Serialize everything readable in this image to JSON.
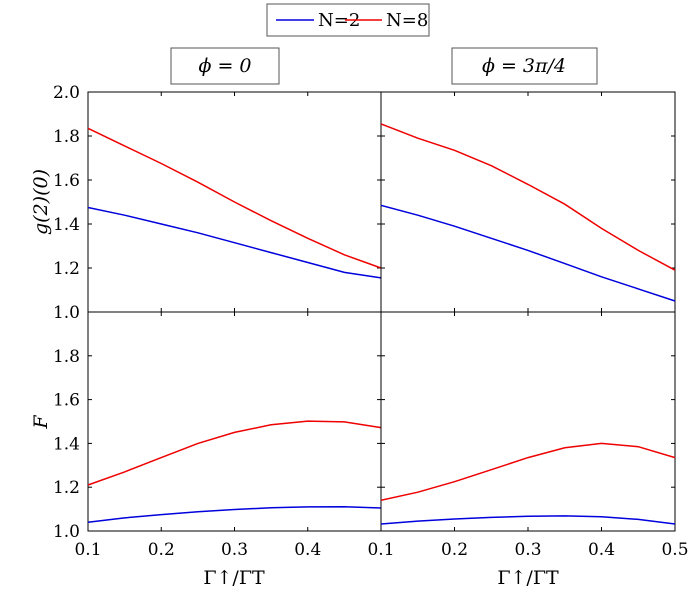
{
  "legend": {
    "entries": [
      {
        "label": "N=2",
        "color": "#0000dd"
      },
      {
        "label": "N=8",
        "color": "#ee0000"
      }
    ]
  },
  "panel_titles": [
    "ϕ = 0",
    "ϕ = 3π/4"
  ],
  "chart_data": [
    {
      "type": "line",
      "panel": "top-left",
      "xlim": [
        0.1,
        0.5
      ],
      "ylim": [
        1.0,
        2.0
      ],
      "yticks": [
        "1.0",
        "1.2",
        "1.4",
        "1.6",
        "1.8",
        "2.0"
      ],
      "ylabel": "g(2)(0)",
      "series": [
        {
          "name": "N=2",
          "x": [
            0.1,
            0.15,
            0.2,
            0.25,
            0.3,
            0.35,
            0.4,
            0.45,
            0.5
          ],
          "y": [
            1.475,
            1.44,
            1.4,
            1.36,
            1.315,
            1.27,
            1.225,
            1.18,
            1.155
          ]
        },
        {
          "name": "N=8",
          "x": [
            0.1,
            0.15,
            0.2,
            0.25,
            0.3,
            0.35,
            0.4,
            0.45,
            0.5
          ],
          "y": [
            1.835,
            1.755,
            1.675,
            1.59,
            1.5,
            1.415,
            1.335,
            1.26,
            1.2
          ]
        }
      ]
    },
    {
      "type": "line",
      "panel": "top-right",
      "xlim": [
        0.1,
        0.5
      ],
      "ylim": [
        1.0,
        2.0
      ],
      "series": [
        {
          "name": "N=2",
          "x": [
            0.1,
            0.15,
            0.2,
            0.25,
            0.3,
            0.35,
            0.4,
            0.45,
            0.5
          ],
          "y": [
            1.485,
            1.44,
            1.39,
            1.335,
            1.28,
            1.22,
            1.16,
            1.105,
            1.05
          ]
        },
        {
          "name": "N=8",
          "x": [
            0.1,
            0.15,
            0.2,
            0.25,
            0.3,
            0.35,
            0.4,
            0.45,
            0.5
          ],
          "y": [
            1.855,
            1.79,
            1.735,
            1.665,
            1.58,
            1.49,
            1.38,
            1.28,
            1.19
          ]
        }
      ]
    },
    {
      "type": "line",
      "panel": "bottom-left",
      "xlim": [
        0.1,
        0.5
      ],
      "ylim": [
        1.0,
        2.0
      ],
      "xticks": [
        "0.1",
        "0.2",
        "0.3",
        "0.4"
      ],
      "yticks": [
        "1.0",
        "1.2",
        "1.4",
        "1.6",
        "1.8"
      ],
      "xlabel": "Γ↑/ΓT",
      "ylabel": "F",
      "series": [
        {
          "name": "N=2",
          "x": [
            0.1,
            0.15,
            0.2,
            0.25,
            0.3,
            0.35,
            0.4,
            0.45,
            0.5
          ],
          "y": [
            1.04,
            1.06,
            1.075,
            1.088,
            1.098,
            1.106,
            1.11,
            1.111,
            1.105
          ]
        },
        {
          "name": "N=8",
          "x": [
            0.1,
            0.15,
            0.2,
            0.25,
            0.3,
            0.35,
            0.4,
            0.45,
            0.5
          ],
          "y": [
            1.21,
            1.27,
            1.335,
            1.4,
            1.45,
            1.485,
            1.502,
            1.498,
            1.472
          ]
        }
      ]
    },
    {
      "type": "line",
      "panel": "bottom-right",
      "xlim": [
        0.1,
        0.5
      ],
      "ylim": [
        1.0,
        2.0
      ],
      "xticks": [
        "0.1",
        "0.2",
        "0.3",
        "0.4",
        "0.5"
      ],
      "xlabel": "Γ↑/ΓT",
      "series": [
        {
          "name": "N=2",
          "x": [
            0.1,
            0.15,
            0.2,
            0.25,
            0.3,
            0.35,
            0.4,
            0.45,
            0.5
          ],
          "y": [
            1.032,
            1.045,
            1.055,
            1.062,
            1.067,
            1.069,
            1.065,
            1.053,
            1.032
          ]
        },
        {
          "name": "N=8",
          "x": [
            0.1,
            0.15,
            0.2,
            0.25,
            0.3,
            0.35,
            0.4,
            0.45,
            0.5
          ],
          "y": [
            1.14,
            1.177,
            1.225,
            1.28,
            1.335,
            1.38,
            1.4,
            1.385,
            1.335
          ]
        }
      ]
    }
  ]
}
